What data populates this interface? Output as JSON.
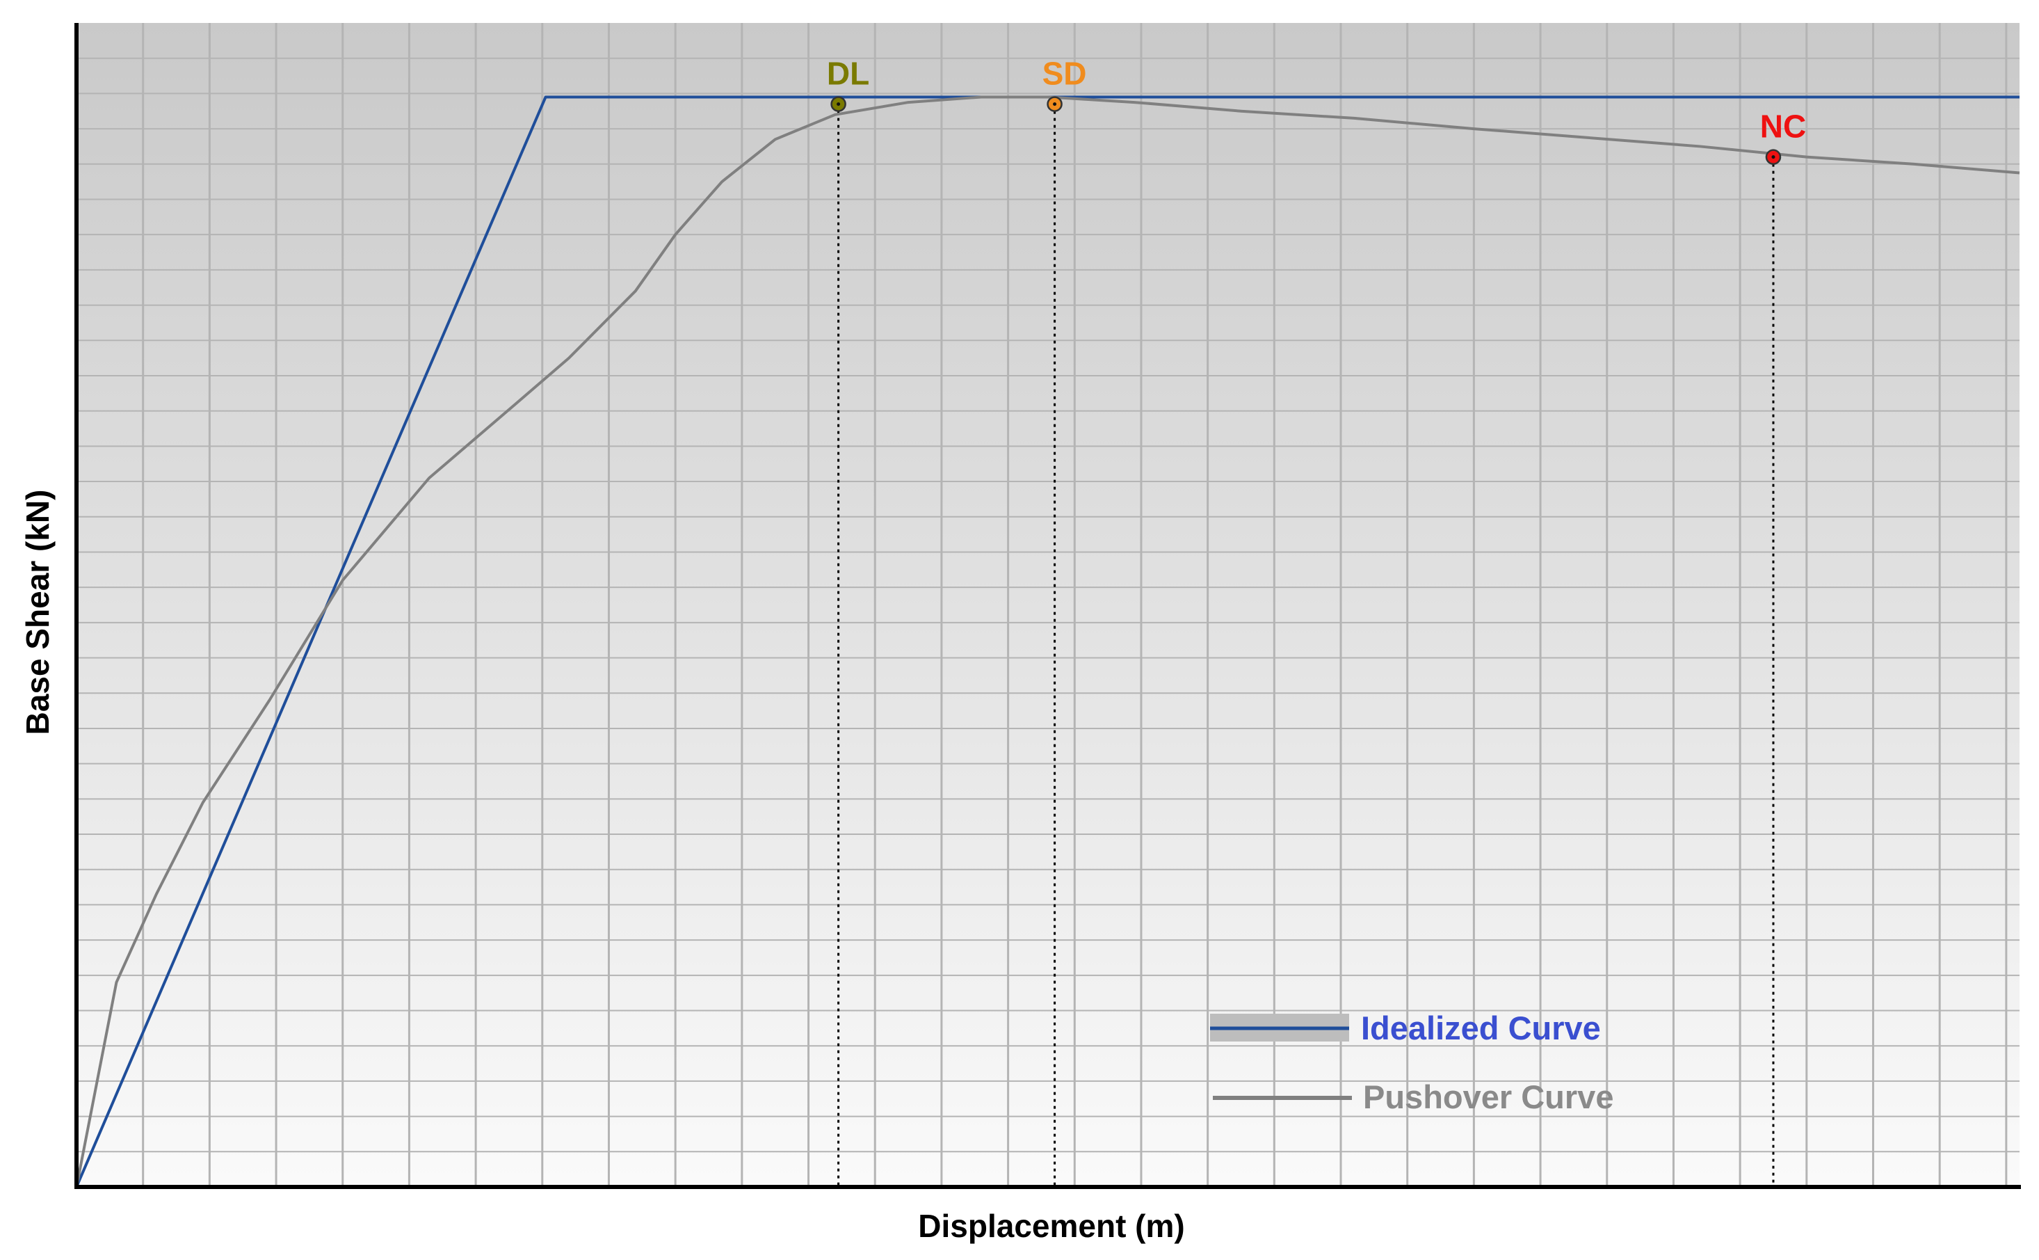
{
  "chart_data": {
    "type": "line",
    "xlabel": "Displacement (m)",
    "ylabel": "Base Shear (kN)",
    "xlim": [
      0,
      29.2
    ],
    "ylim": [
      0,
      33
    ],
    "grid": true,
    "legend_position": "bottom-right",
    "series": [
      {
        "name": "Idealized Curve",
        "color": "#1f4e9a",
        "x": [
          0,
          7.05,
          29.2
        ],
        "y": [
          0,
          30.9,
          30.9
        ]
      },
      {
        "name": "Pushover Curve",
        "color": "#808080",
        "x": [
          0,
          0.6,
          1.2,
          1.9,
          2.9,
          4.0,
          5.3,
          6.6,
          7.4,
          8.4,
          9.0,
          9.7,
          10.5,
          11.4,
          12.5,
          13.6,
          14.6,
          15.9,
          17.5,
          19.2,
          21.0,
          22.7,
          24.4,
          26.0,
          27.6,
          29.2
        ],
        "y": [
          0,
          5.8,
          8.3,
          10.9,
          13.8,
          17.2,
          20.1,
          22.2,
          23.5,
          25.4,
          27.0,
          28.5,
          29.7,
          30.4,
          30.75,
          30.9,
          30.9,
          30.75,
          30.5,
          30.3,
          30.0,
          29.75,
          29.5,
          29.2,
          29.0,
          28.75
        ]
      }
    ],
    "points": [
      {
        "label": "DL",
        "x": 11.45,
        "y": 30.7,
        "color": "#7a7a00"
      },
      {
        "label": "SD",
        "x": 14.7,
        "y": 30.7,
        "color": "#f08c1e"
      },
      {
        "label": "NC",
        "x": 25.5,
        "y": 29.2,
        "color": "#ee1111"
      }
    ]
  }
}
